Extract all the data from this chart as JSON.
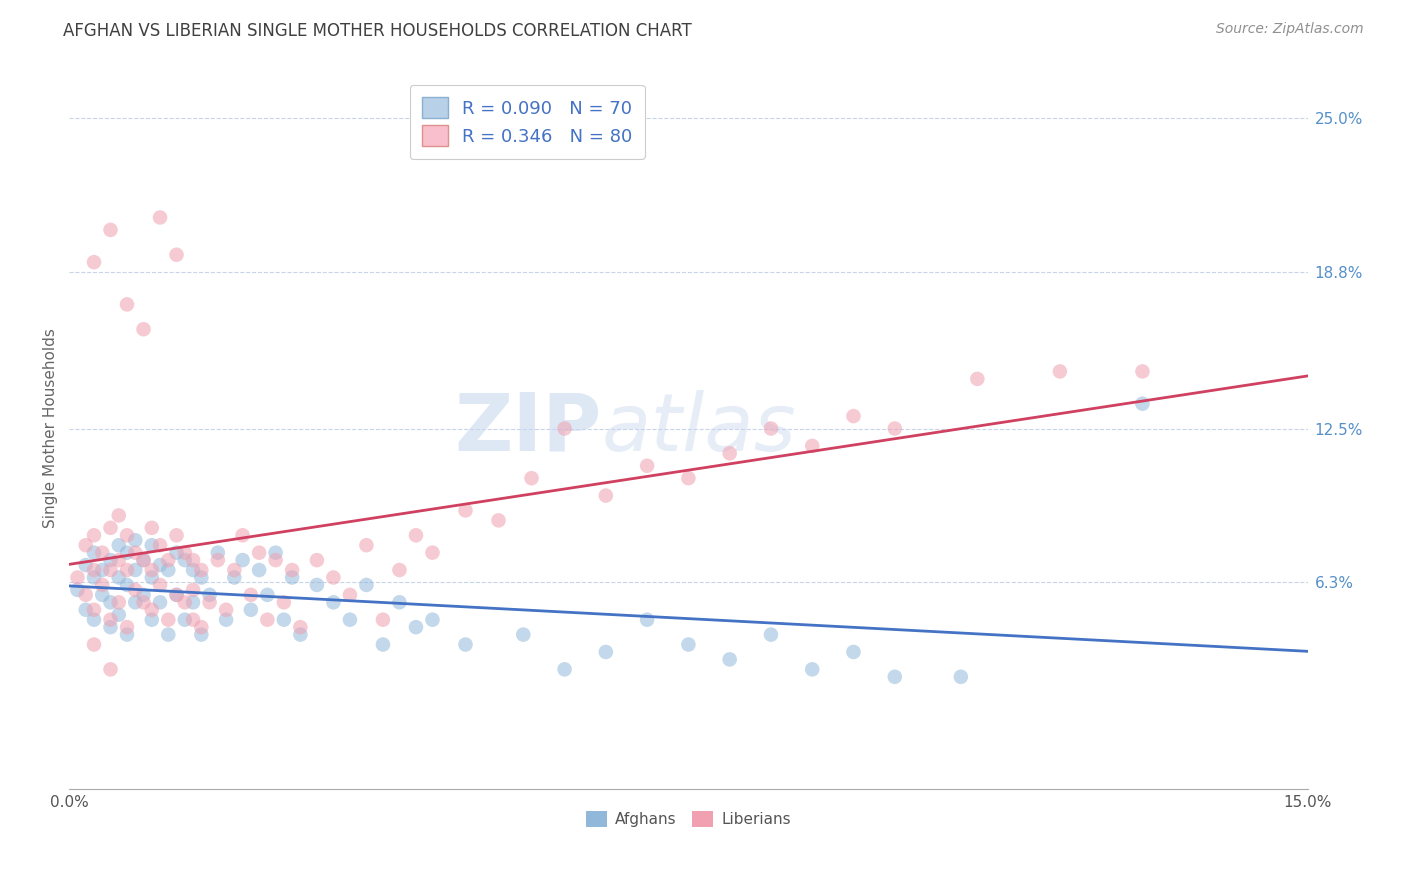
{
  "title": "AFGHAN VS LIBERIAN SINGLE MOTHER HOUSEHOLDS CORRELATION CHART",
  "source": "Source: ZipAtlas.com",
  "ylabel": "Single Mother Households",
  "xlim": [
    0.0,
    0.15
  ],
  "ylim": [
    -0.02,
    0.27
  ],
  "plot_ylim": [
    -0.02,
    0.27
  ],
  "xtick_labels": [
    "0.0%",
    "15.0%"
  ],
  "xtick_positions": [
    0.0,
    0.15
  ],
  "ytick_labels": [
    "6.3%",
    "12.5%",
    "18.8%",
    "25.0%"
  ],
  "ytick_values": [
    0.063,
    0.125,
    0.188,
    0.25
  ],
  "legend_bottom_labels": [
    "Afghans",
    "Liberians"
  ],
  "watermark": "ZIPatlas",
  "afghan_color": "#92b8d9",
  "liberian_color": "#f0a0b0",
  "afghan_line_color": "#4472c4",
  "liberian_line_color": "#d04060",
  "grid_color": "#c8d4e8",
  "background_color": "#ffffff",
  "title_color": "#404040",
  "source_color": "#909090",
  "right_axis_color": "#5590c8",
  "legend_text_color": "#4472c4",
  "bottom_legend_color": "#555555",
  "afghan_x": [
    0.001,
    0.002,
    0.002,
    0.003,
    0.003,
    0.003,
    0.004,
    0.004,
    0.005,
    0.005,
    0.005,
    0.006,
    0.006,
    0.006,
    0.007,
    0.007,
    0.007,
    0.008,
    0.008,
    0.008,
    0.009,
    0.009,
    0.01,
    0.01,
    0.01,
    0.011,
    0.011,
    0.012,
    0.012,
    0.013,
    0.013,
    0.014,
    0.014,
    0.015,
    0.015,
    0.016,
    0.016,
    0.017,
    0.018,
    0.019,
    0.02,
    0.021,
    0.022,
    0.023,
    0.024,
    0.025,
    0.026,
    0.027,
    0.028,
    0.03,
    0.032,
    0.034,
    0.036,
    0.038,
    0.04,
    0.042,
    0.044,
    0.048,
    0.055,
    0.06,
    0.065,
    0.07,
    0.075,
    0.08,
    0.085,
    0.09,
    0.095,
    0.1,
    0.108,
    0.13
  ],
  "afghan_y": [
    0.06,
    0.052,
    0.07,
    0.048,
    0.065,
    0.075,
    0.058,
    0.068,
    0.045,
    0.055,
    0.072,
    0.05,
    0.065,
    0.078,
    0.042,
    0.062,
    0.075,
    0.055,
    0.068,
    0.08,
    0.058,
    0.072,
    0.048,
    0.065,
    0.078,
    0.055,
    0.07,
    0.042,
    0.068,
    0.058,
    0.075,
    0.048,
    0.072,
    0.055,
    0.068,
    0.042,
    0.065,
    0.058,
    0.075,
    0.048,
    0.065,
    0.072,
    0.052,
    0.068,
    0.058,
    0.075,
    0.048,
    0.065,
    0.042,
    0.062,
    0.055,
    0.048,
    0.062,
    0.038,
    0.055,
    0.045,
    0.048,
    0.038,
    0.042,
    0.028,
    0.035,
    0.048,
    0.038,
    0.032,
    0.042,
    0.028,
    0.035,
    0.025,
    0.025,
    0.135
  ],
  "liberian_x": [
    0.001,
    0.002,
    0.002,
    0.003,
    0.003,
    0.003,
    0.004,
    0.004,
    0.005,
    0.005,
    0.005,
    0.006,
    0.006,
    0.006,
    0.007,
    0.007,
    0.007,
    0.008,
    0.008,
    0.009,
    0.009,
    0.01,
    0.01,
    0.01,
    0.011,
    0.011,
    0.012,
    0.012,
    0.013,
    0.013,
    0.014,
    0.014,
    0.015,
    0.015,
    0.016,
    0.016,
    0.017,
    0.018,
    0.019,
    0.02,
    0.021,
    0.022,
    0.023,
    0.024,
    0.025,
    0.026,
    0.027,
    0.028,
    0.03,
    0.032,
    0.034,
    0.036,
    0.038,
    0.04,
    0.042,
    0.044,
    0.048,
    0.052,
    0.056,
    0.06,
    0.065,
    0.07,
    0.075,
    0.08,
    0.085,
    0.09,
    0.095,
    0.1,
    0.11,
    0.12,
    0.13,
    0.003,
    0.005,
    0.007,
    0.009,
    0.011,
    0.013,
    0.015,
    0.003,
    0.005
  ],
  "liberian_y": [
    0.065,
    0.058,
    0.078,
    0.052,
    0.068,
    0.082,
    0.062,
    0.075,
    0.048,
    0.068,
    0.085,
    0.055,
    0.072,
    0.09,
    0.045,
    0.068,
    0.082,
    0.06,
    0.075,
    0.055,
    0.072,
    0.052,
    0.068,
    0.085,
    0.062,
    0.078,
    0.048,
    0.072,
    0.058,
    0.082,
    0.055,
    0.075,
    0.048,
    0.072,
    0.045,
    0.068,
    0.055,
    0.072,
    0.052,
    0.068,
    0.082,
    0.058,
    0.075,
    0.048,
    0.072,
    0.055,
    0.068,
    0.045,
    0.072,
    0.065,
    0.058,
    0.078,
    0.048,
    0.068,
    0.082,
    0.075,
    0.092,
    0.088,
    0.105,
    0.125,
    0.098,
    0.11,
    0.105,
    0.115,
    0.125,
    0.118,
    0.13,
    0.125,
    0.145,
    0.148,
    0.148,
    0.192,
    0.205,
    0.175,
    0.165,
    0.21,
    0.195,
    0.06,
    0.038,
    0.028
  ]
}
